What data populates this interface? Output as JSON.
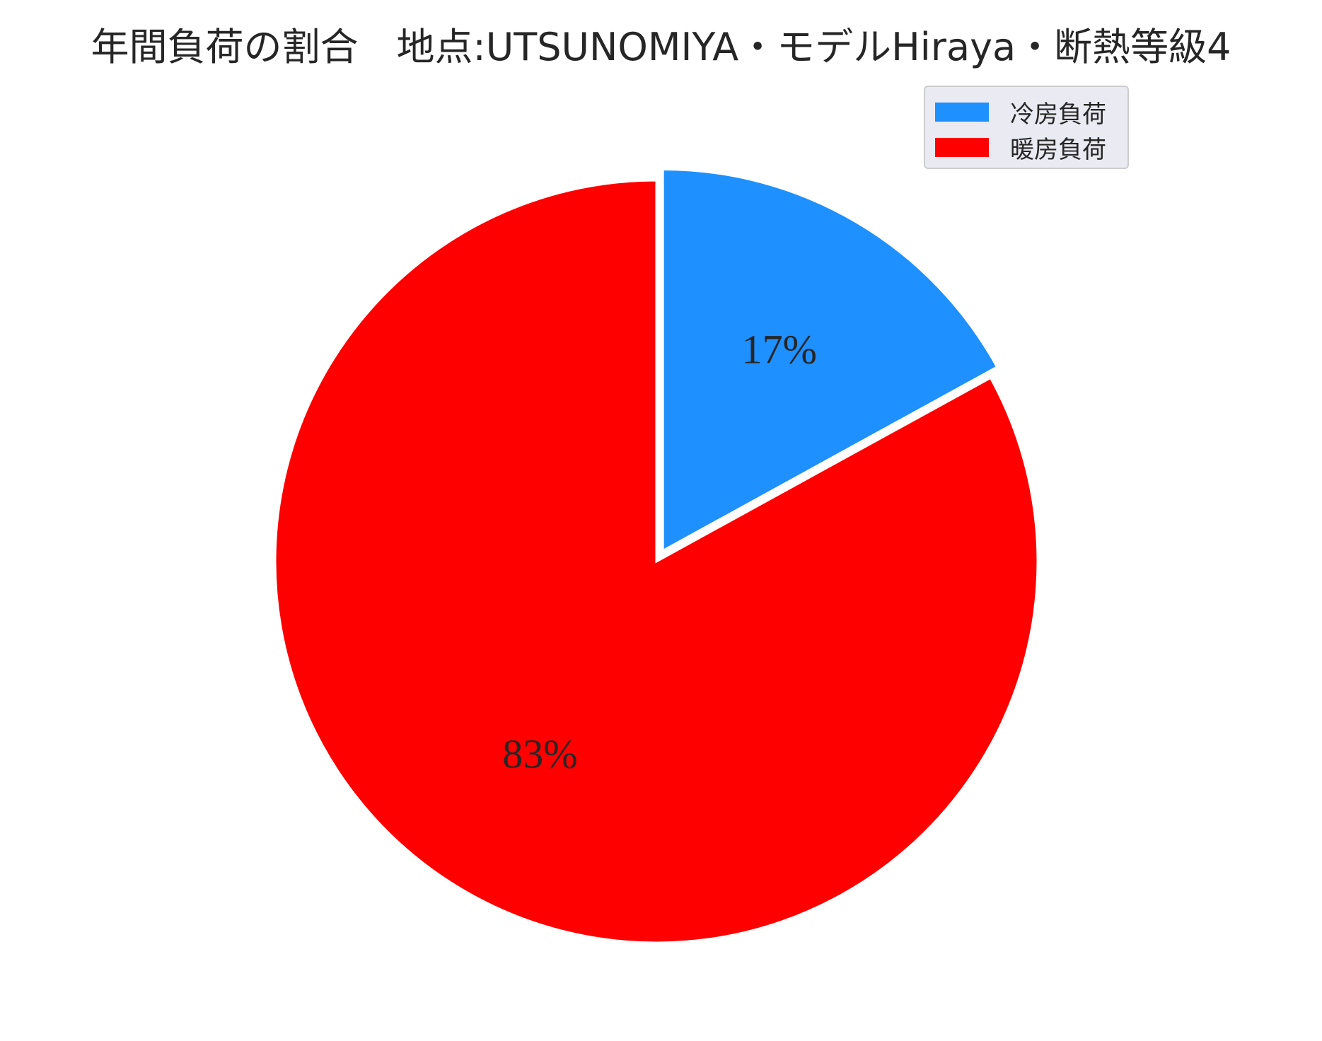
{
  "chart_data": {
    "type": "pie",
    "title": "年間負荷の割合　地点:UTSUNOMIYA・モデルHiraya・断熱等級4",
    "slices": [
      {
        "name": "冷房負荷",
        "value": 17,
        "label": "17%",
        "color": "#1e90ff",
        "exploded": true
      },
      {
        "name": "暖房負荷",
        "value": 83,
        "label": "83%",
        "color": "#ff0000",
        "exploded": false
      }
    ],
    "start_angle": "top (12 o'clock)",
    "direction": "clockwise",
    "legend_position": "top-right"
  },
  "legend": {
    "items": [
      {
        "label": "冷房負荷",
        "color": "#1e90ff"
      },
      {
        "label": "暖房負荷",
        "color": "#ff0000"
      }
    ]
  }
}
